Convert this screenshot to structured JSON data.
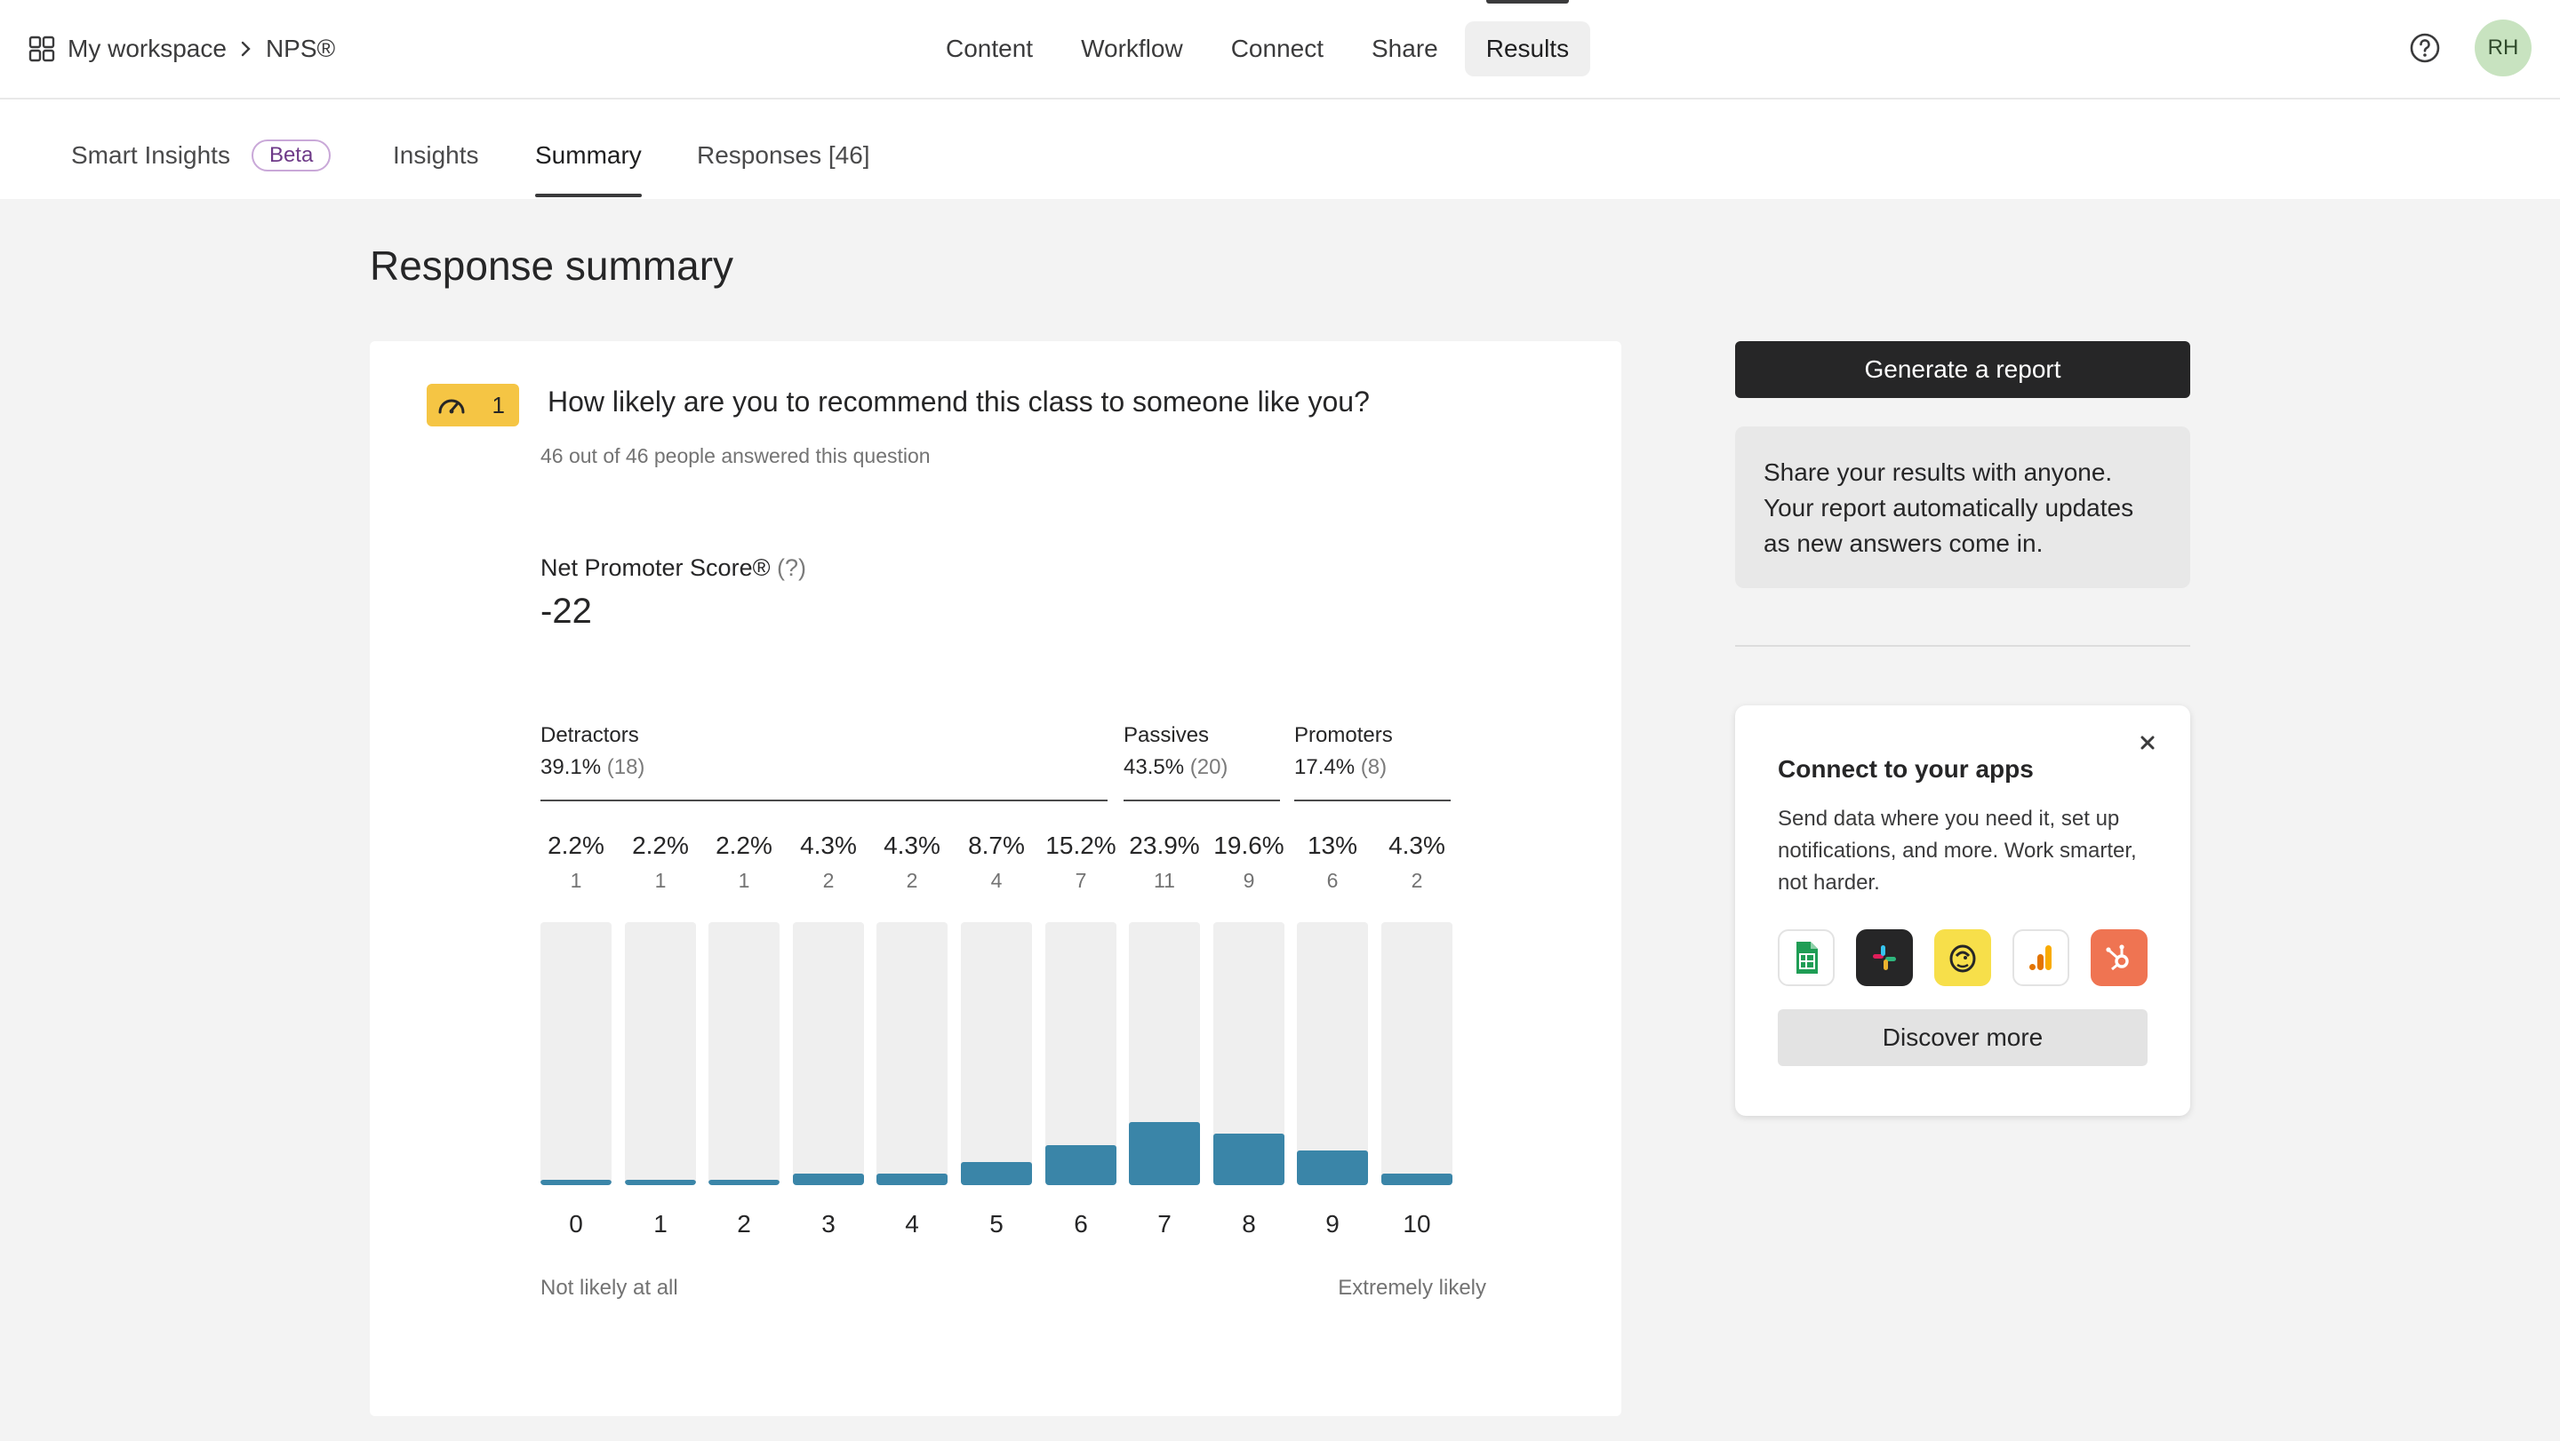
{
  "breadcrumb": {
    "workspace": "My workspace",
    "form": "NPS®"
  },
  "main_nav": [
    "Content",
    "Workflow",
    "Connect",
    "Share",
    "Results"
  ],
  "user": {
    "initials": "RH"
  },
  "sub_tabs": {
    "smart_insights": "Smart Insights",
    "beta": "Beta",
    "insights": "Insights",
    "summary": "Summary",
    "responses": "Responses [46]"
  },
  "page_title": "Response summary",
  "question": {
    "number": "1",
    "text": "How likely are you to recommend this class to someone like you?",
    "answered": "46 out of 46 people answered this question"
  },
  "nps": {
    "label": "Net Promoter Score®",
    "help": "(?)",
    "score": "-22"
  },
  "groups": {
    "detractors": {
      "name": "Detractors",
      "pct": "39.1%",
      "count": "(18)"
    },
    "passives": {
      "name": "Passives",
      "pct": "43.5%",
      "count": "(20)"
    },
    "promoters": {
      "name": "Promoters",
      "pct": "17.4%",
      "count": "(8)"
    }
  },
  "chart_data": {
    "type": "bar",
    "categories": [
      "0",
      "1",
      "2",
      "3",
      "4",
      "5",
      "6",
      "7",
      "8",
      "9",
      "10"
    ],
    "percent_labels": [
      "2.2%",
      "2.2%",
      "2.2%",
      "4.3%",
      "4.3%",
      "8.7%",
      "15.2%",
      "23.9%",
      "19.6%",
      "13%",
      "4.3%"
    ],
    "values": [
      1,
      1,
      1,
      2,
      2,
      4,
      7,
      11,
      9,
      6,
      2
    ],
    "ylim": [
      0,
      46
    ],
    "scale_left": "Not likely at all",
    "scale_right": "Extremely likely"
  },
  "sidebar": {
    "generate_label": "Generate a report",
    "share_text": "Share your results with anyone. Your report automatically updates as new answers come in.",
    "connect_title": "Connect to your apps",
    "connect_desc": "Send data where you need it, set up notifications, and more. Work smarter, not harder.",
    "apps": [
      "google-sheets-icon",
      "slack-icon",
      "mailchimp-icon",
      "google-analytics-icon",
      "hubspot-icon"
    ],
    "discover_label": "Discover more"
  },
  "colors": {
    "bar_fill": "#3a85a8",
    "bar_track": "#efefef",
    "badge": "#f5c544",
    "dark_button": "#262627"
  }
}
